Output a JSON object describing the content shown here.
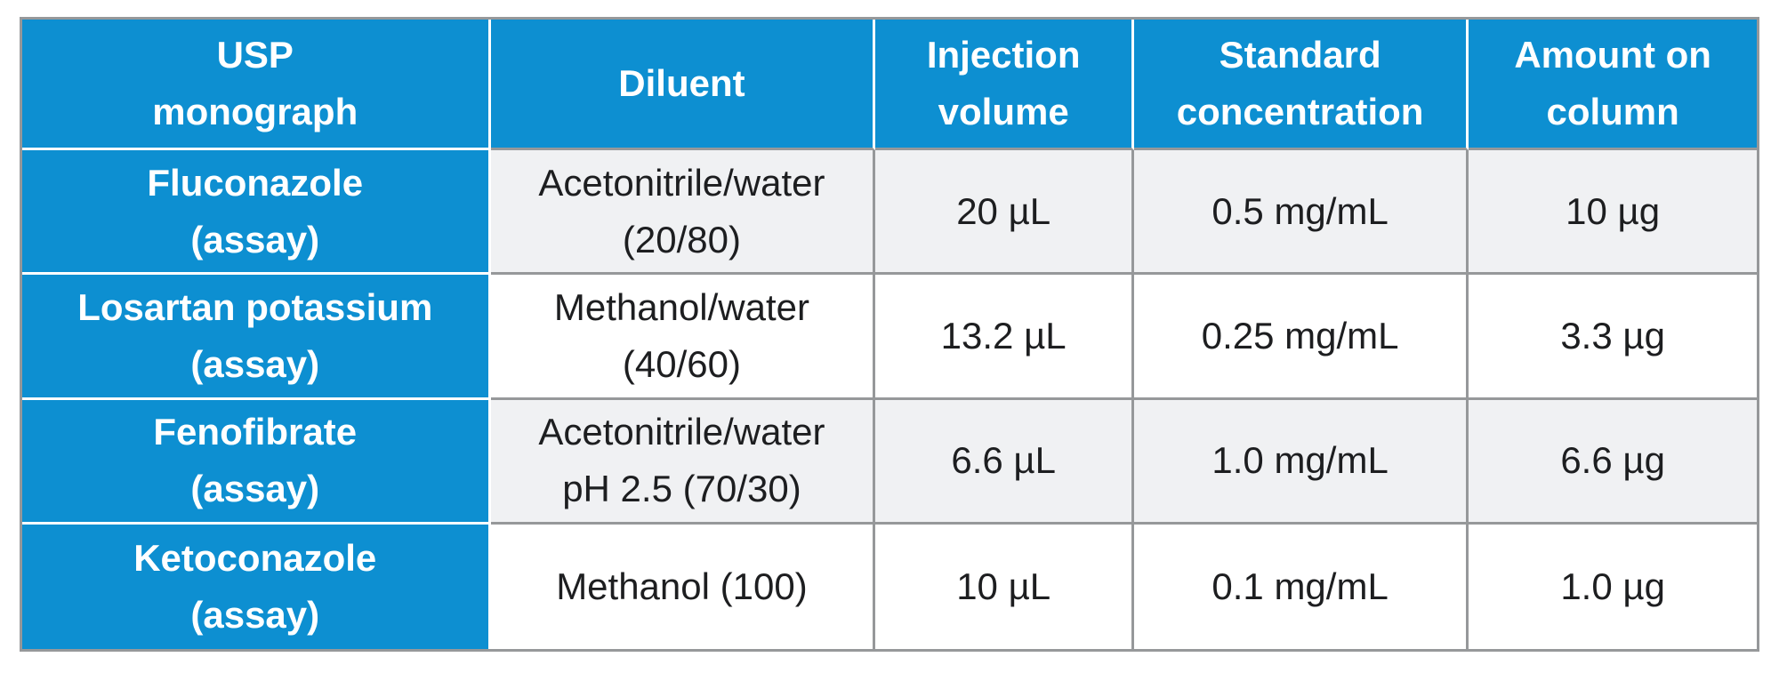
{
  "colors": {
    "accent_blue": "#0d8fd1",
    "border_gray": "#96989a",
    "alt_row_gray": "#f0f1f3",
    "header_text": "#ffffff",
    "body_text": "#1d1e20"
  },
  "table": {
    "headers": {
      "usp_monograph": {
        "line1": "USP",
        "line2": "monograph"
      },
      "diluent": {
        "line1": "Diluent"
      },
      "injection_volume": {
        "line1": "Injection",
        "line2": "volume"
      },
      "standard_concentration": {
        "line1": "Standard",
        "line2": "concentration"
      },
      "amount_on_column": {
        "line1": "Amount on",
        "line2": "column"
      }
    },
    "rows": [
      {
        "monograph_line1": "Fluconazole",
        "monograph_line2": "(assay)",
        "diluent_line1": "Acetonitrile/water",
        "diluent_line2": "(20/80)",
        "injection_volume": "20 µL",
        "standard_concentration": "0.5 mg/mL",
        "amount_on_column": "10 µg"
      },
      {
        "monograph_line1": "Losartan potassium",
        "monograph_line2": "(assay)",
        "diluent_line1": "Methanol/water",
        "diluent_line2": "(40/60)",
        "injection_volume": "13.2 µL",
        "standard_concentration": "0.25 mg/mL",
        "amount_on_column": "3.3 µg"
      },
      {
        "monograph_line1": "Fenofibrate",
        "monograph_line2": "(assay)",
        "diluent_line1": "Acetonitrile/water",
        "diluent_line2": "pH 2.5 (70/30)",
        "injection_volume": "6.6 µL",
        "standard_concentration": "1.0 mg/mL",
        "amount_on_column": "6.6 µg"
      },
      {
        "monograph_line1": "Ketoconazole",
        "monograph_line2": "(assay)",
        "diluent_line1": "Methanol (100)",
        "injection_volume": "10 µL",
        "standard_concentration": "0.1 mg/mL",
        "amount_on_column": "1.0 µg"
      }
    ]
  }
}
